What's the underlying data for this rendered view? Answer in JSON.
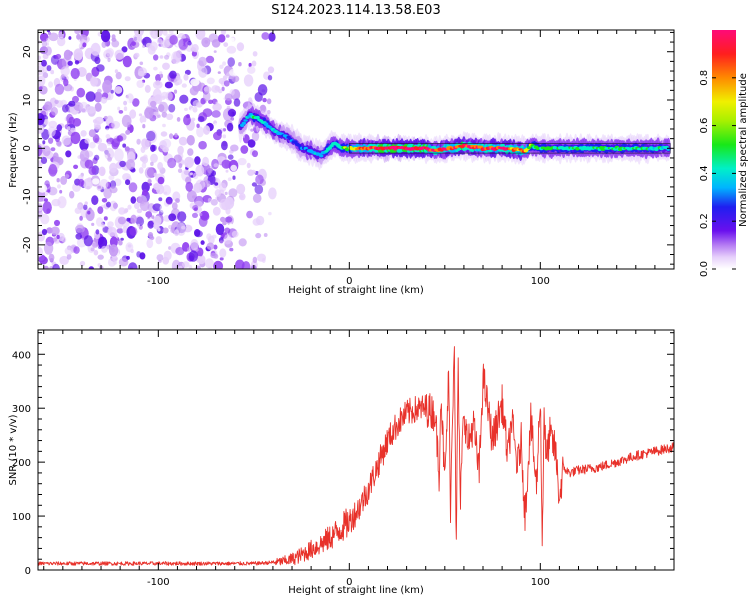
{
  "figure_title": "S124.2023.114.13.58.E03",
  "colors": {
    "snr_line": "#e8312a",
    "frame": "#000000",
    "spectrogram_palette": [
      "#ffffff",
      "#e6cffb",
      "#c59af3",
      "#8f3df0",
      "#5a10e8",
      "#1f1ff0",
      "#00b4ff",
      "#00f0c8",
      "#18e818",
      "#f0f000",
      "#ff8a00",
      "#ff1e1e",
      "#ff0a78"
    ]
  },
  "chart_data": [
    {
      "type": "heatmap",
      "title": "",
      "xlabel": "Height of straight line (km)",
      "ylabel": "Frequency (Hz)",
      "xlim": [
        -163,
        170
      ],
      "ylim": [
        -25,
        24.5
      ],
      "xticks": [
        -100,
        0,
        100
      ],
      "xtick_labels": [
        "-100",
        "0",
        "100"
      ],
      "yticks": [
        -20,
        -10,
        0,
        10,
        20
      ],
      "ytick_labels": [
        "-20",
        "-10",
        "0",
        "10",
        "20"
      ],
      "colorbar": {
        "label": "Normalized spectral amplitude",
        "range": [
          0,
          1
        ],
        "ticks": [
          0.0,
          0.2,
          0.4,
          0.6,
          0.8
        ],
        "tick_labels": [
          "0.0",
          "0.2",
          "0.4",
          "0.6",
          "0.8"
        ]
      },
      "noise_region_km": [
        -163,
        -40
      ],
      "signal_track": {
        "x": [
          -57,
          -52,
          -47,
          -42,
          -37,
          -33,
          -29,
          -25,
          -20,
          -15,
          -12,
          -8,
          -4,
          0,
          5,
          20,
          40,
          45,
          60,
          70,
          80,
          92,
          95,
          100,
          110,
          130,
          150,
          168
        ],
        "y": [
          4.5,
          7,
          6,
          4.5,
          3,
          2.5,
          1.5,
          0,
          -0.5,
          -1.5,
          -0.5,
          1,
          0,
          0,
          0,
          0,
          0,
          -0.5,
          0.5,
          0,
          0,
          -0.5,
          0.5,
          0,
          0,
          0,
          0,
          0
        ],
        "amplitude": [
          0.35,
          0.45,
          0.5,
          0.45,
          0.4,
          0.35,
          0.3,
          0.35,
          0.4,
          0.4,
          0.45,
          0.5,
          0.55,
          0.6,
          0.75,
          0.95,
          0.9,
          0.8,
          0.85,
          0.8,
          0.85,
          0.7,
          0.6,
          0.55,
          0.5,
          0.5,
          0.5,
          0.45
        ]
      }
    },
    {
      "type": "line",
      "title": "",
      "xlabel": "Height of straight line (km)",
      "ylabel": "SNR (10 * v/v)",
      "xlim": [
        -163,
        170
      ],
      "ylim": [
        0,
        445
      ],
      "xticks": [
        -100,
        0,
        100
      ],
      "xtick_labels": [
        "-100",
        "0",
        "100"
      ],
      "yticks": [
        0,
        100,
        200,
        300,
        400
      ],
      "ytick_labels": [
        "0",
        "100",
        "200",
        "300",
        "400"
      ],
      "series": [
        {
          "x": [
            -163,
            -140,
            -120,
            -100,
            -80,
            -60,
            -50,
            -40,
            -35,
            -30,
            -25,
            -20,
            -15,
            -10,
            -5,
            0,
            5,
            10,
            15,
            20,
            25,
            30,
            35,
            40,
            45,
            47,
            48,
            50,
            52,
            53,
            55,
            56,
            57,
            58,
            60,
            62,
            65,
            68,
            70,
            75,
            80,
            83,
            85,
            88,
            90,
            92,
            95,
            98,
            100,
            101,
            102,
            103,
            105,
            108,
            110,
            112,
            115,
            120,
            130,
            140,
            150,
            160,
            170
          ],
          "y": [
            12,
            12,
            12,
            12,
            12,
            12,
            12,
            14,
            16,
            20,
            28,
            38,
            48,
            60,
            75,
            90,
            115,
            150,
            195,
            240,
            270,
            290,
            298,
            300,
            290,
            180,
            330,
            160,
            360,
            120,
            440,
            35,
            390,
            120,
            300,
            230,
            270,
            180,
            360,
            240,
            310,
            210,
            280,
            190,
            240,
            100,
            280,
            150,
            330,
            45,
            300,
            200,
            250,
            220,
            130,
            190,
            180,
            185,
            190,
            200,
            212,
            220,
            228
          ]
        }
      ]
    }
  ]
}
